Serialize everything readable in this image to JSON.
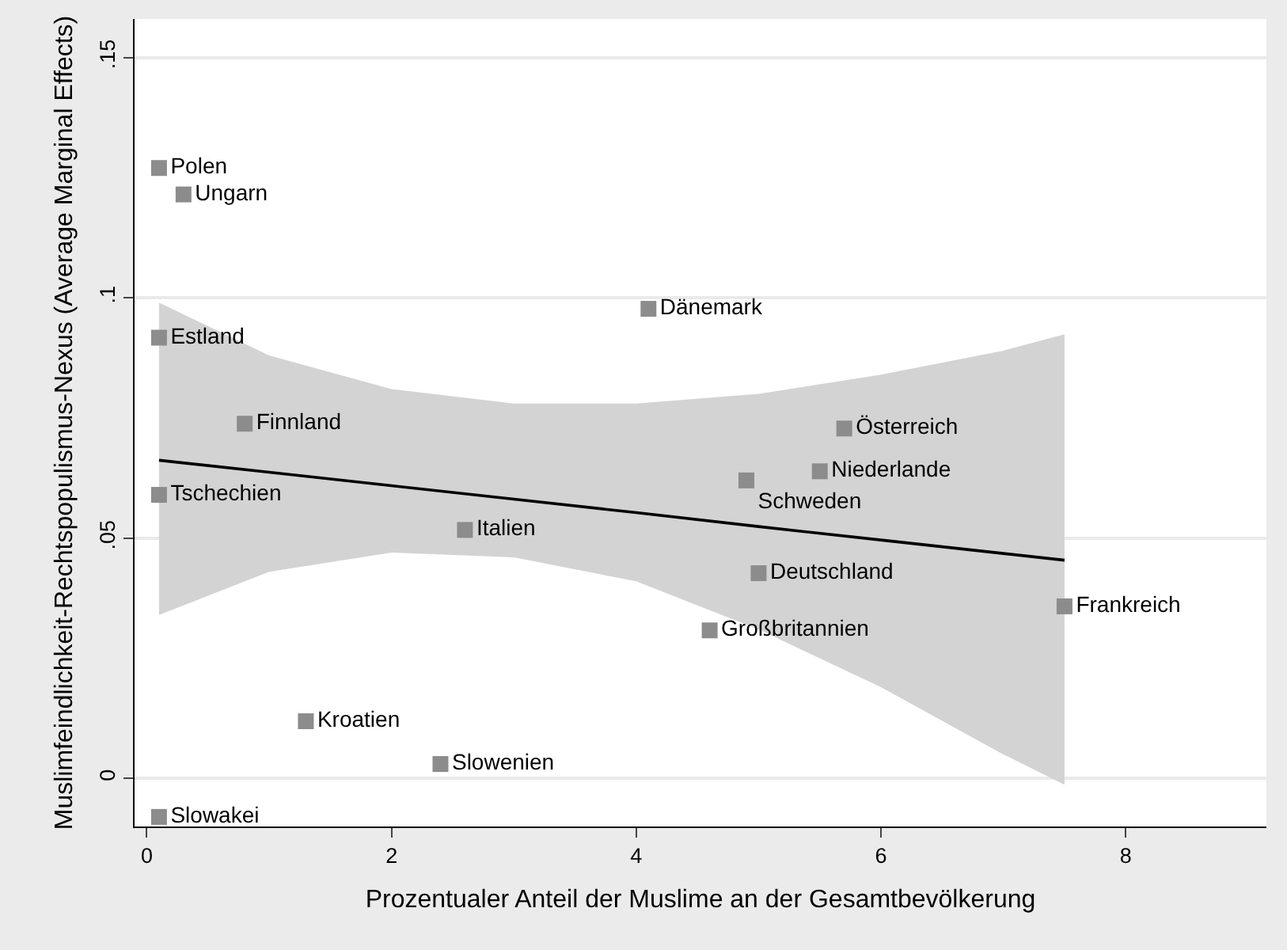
{
  "chart_data": {
    "type": "scatter",
    "xlabel": "Prozentualer Anteil der Muslime an der Gesamtbevölkerung",
    "ylabel": "Muslimfeindlichkeit-Rechtspopulismus-Nexus (Average Marginal Effects)",
    "xlim": [
      -0.1,
      9.15
    ],
    "xticks": [
      0,
      2,
      4,
      6,
      8
    ],
    "ylim": [
      -0.01,
      0.158
    ],
    "yticks": [
      {
        "value": 0,
        "label": "0"
      },
      {
        "value": 0.05,
        "label": ".05"
      },
      {
        "value": 0.1,
        "label": ".1"
      },
      {
        "value": 0.15,
        "label": ".15"
      }
    ],
    "grid": "y",
    "series": [
      {
        "type": "line",
        "color": "#000000",
        "x": [
          0.1,
          1,
          2,
          3,
          4,
          5,
          6,
          7,
          7.5
        ],
        "values": [
          0.0662,
          0.0637,
          0.0609,
          0.0581,
          0.0553,
          0.0524,
          0.0496,
          0.0468,
          0.0454
        ],
        "lower": [
          0.034,
          0.043,
          0.047,
          0.046,
          0.041,
          0.031,
          0.019,
          0.005,
          -0.0013
        ],
        "upper": [
          0.099,
          0.088,
          0.081,
          0.078,
          0.078,
          0.08,
          0.084,
          0.089,
          0.0924
        ],
        "marker": "none"
      },
      {
        "color": "#8c8c8c",
        "marker": "square",
        "x": [
          0.1,
          0.3,
          0.1,
          4.1,
          0.8,
          0.1,
          2.6,
          5.7,
          5.5,
          4.9,
          5.0,
          7.5,
          4.6,
          1.3,
          2.4,
          0.1
        ],
        "values": [
          0.127,
          0.1215,
          0.0917,
          0.0977,
          0.0738,
          0.059,
          0.0517,
          0.0728,
          0.0639,
          0.062,
          0.0427,
          0.0358,
          0.0308,
          0.0119,
          0.003,
          -0.008
        ],
        "value_labels": [
          "Polen",
          "Ungarn",
          "Estland",
          "Dänemark",
          "Finnland",
          "Tschechien",
          "Italien",
          "Österreich",
          "Niederlande",
          "Schweden",
          "Deutschland",
          "Frankreich",
          "Großbritannien",
          "Kroatien",
          "Slowenien",
          "Slowakei"
        ]
      }
    ]
  }
}
